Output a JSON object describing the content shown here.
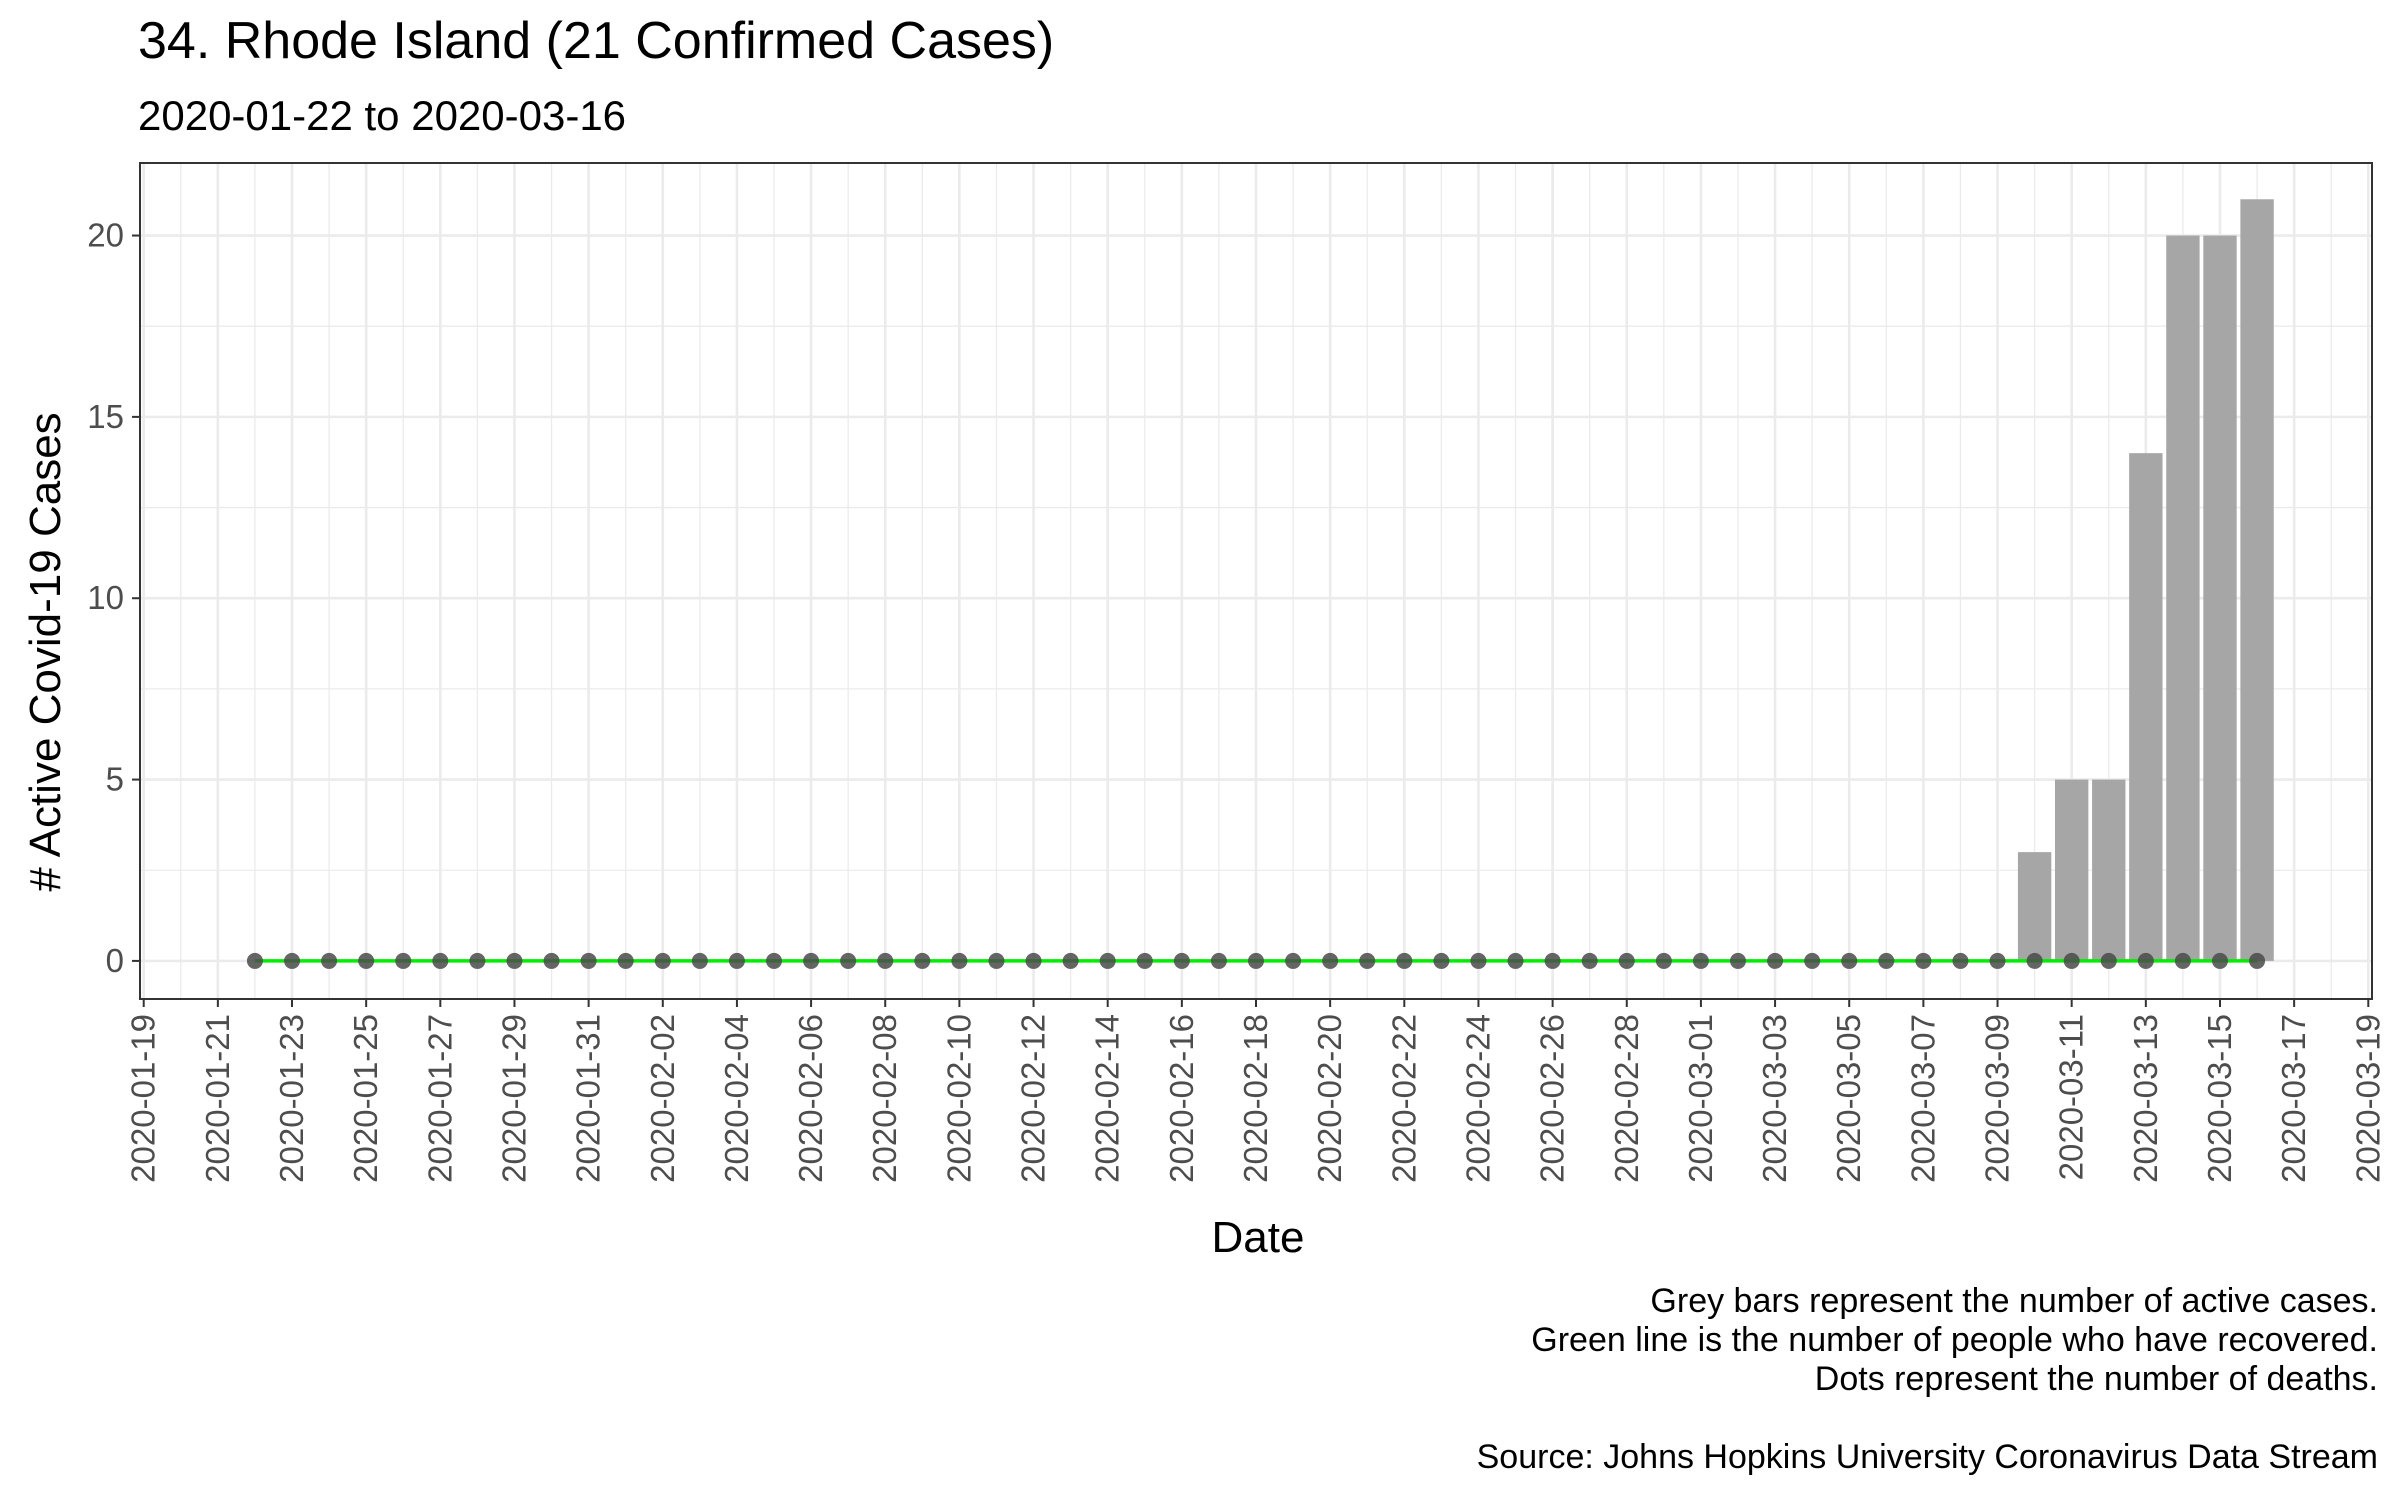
{
  "chart_data": {
    "type": "bar",
    "title": "34. Rhode Island (21 Confirmed Cases)",
    "subtitle": "2020-01-22 to 2020-03-16",
    "xlabel": "Date",
    "ylabel": "# Active Covid-19 Cases",
    "x_axis_type": "date",
    "xlim": [
      "2020-01-19",
      "2020-03-19"
    ],
    "ylim": [
      0,
      22
    ],
    "x_ticks": [
      "2020-01-19",
      "2020-01-21",
      "2020-01-23",
      "2020-01-25",
      "2020-01-27",
      "2020-01-29",
      "2020-01-31",
      "2020-02-02",
      "2020-02-04",
      "2020-02-06",
      "2020-02-08",
      "2020-02-10",
      "2020-02-12",
      "2020-02-14",
      "2020-02-16",
      "2020-02-18",
      "2020-02-20",
      "2020-02-22",
      "2020-02-24",
      "2020-02-26",
      "2020-02-28",
      "2020-03-01",
      "2020-03-03",
      "2020-03-05",
      "2020-03-07",
      "2020-03-09",
      "2020-03-11",
      "2020-03-13",
      "2020-03-15",
      "2020-03-17",
      "2020-03-19"
    ],
    "y_ticks": [
      0,
      5,
      10,
      15,
      20
    ],
    "grid": true,
    "colors": {
      "bars": "#a6a6a6",
      "recovered_line": "#00ee00",
      "death_dots": "#4a4a4a",
      "grid": "#ebebeb",
      "panel_border": "#333333"
    },
    "series": [
      {
        "kind": "bar",
        "dates": [
          "2020-03-10",
          "2020-03-11",
          "2020-03-12",
          "2020-03-13",
          "2020-03-14",
          "2020-03-15",
          "2020-03-16"
        ],
        "values": [
          3,
          5,
          5,
          14,
          20,
          20,
          21
        ]
      },
      {
        "kind": "line",
        "start_date": "2020-01-22",
        "end_date": "2020-03-16",
        "value": 0
      },
      {
        "kind": "points",
        "start_date": "2020-01-22",
        "end_date": "2020-03-16",
        "value": 0
      }
    ],
    "caption": [
      "Grey bars represent the number of active cases.",
      "Green line is the number of people who have recovered.",
      "Dots represent the number of deaths.",
      "",
      "Source: Johns Hopkins University Coronavirus Data Stream"
    ]
  }
}
